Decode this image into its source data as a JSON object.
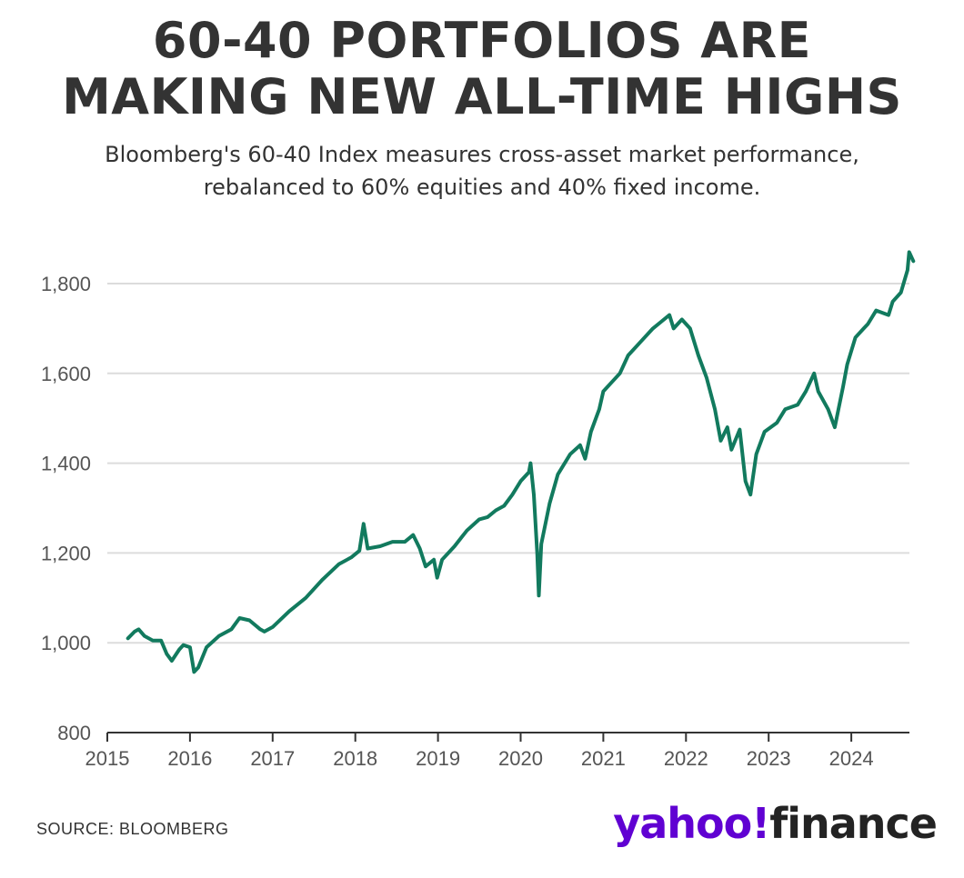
{
  "header": {
    "title_line1": "60-40 PORTFOLIOS ARE",
    "title_line2": "MAKING NEW ALL-TIME HIGHS",
    "subtitle_line1": "Bloomberg's 60-40 Index measures cross-asset market performance,",
    "subtitle_line2": "rebalanced to 60% equities and 40% fixed income."
  },
  "footer": {
    "source": "SOURCE: BLOOMBERG",
    "logo_yahoo": "yahoo!",
    "logo_finance": "finance",
    "logo_colors": {
      "yahoo": "#6001d2",
      "finance": "#232323"
    }
  },
  "chart_data": {
    "type": "line",
    "title": "60-40 PORTFOLIOS ARE MAKING NEW ALL-TIME HIGHS",
    "xlabel": "",
    "ylabel": "",
    "xlim": [
      2015,
      2024.75
    ],
    "ylim": [
      800,
      1860
    ],
    "yticks": [
      800,
      1000,
      1200,
      1400,
      1600,
      1800
    ],
    "ytick_labels": [
      "800",
      "1,000",
      "1,200",
      "1,400",
      "1,600",
      "1,800"
    ],
    "xticks": [
      2015,
      2016,
      2017,
      2018,
      2019,
      2020,
      2021,
      2022,
      2023,
      2024
    ],
    "xtick_labels": [
      "2015",
      "2016",
      "2017",
      "2018",
      "2019",
      "2020",
      "2021",
      "2022",
      "2023",
      "2024"
    ],
    "grid": "horizontal",
    "line_color": "#127a5e",
    "series": [
      {
        "x": [
          2015.25,
          2015.33,
          2015.38,
          2015.45,
          2015.55,
          2015.65,
          2015.72,
          2015.78,
          2015.87,
          2015.92,
          2016.0,
          2016.05,
          2016.1,
          2016.2,
          2016.35,
          2016.5,
          2016.6,
          2016.72,
          2016.85,
          2016.9,
          2017.0,
          2017.2,
          2017.4,
          2017.6,
          2017.8,
          2017.95,
          2018.05,
          2018.1,
          2018.15,
          2018.3,
          2018.45,
          2018.6,
          2018.7,
          2018.78,
          2018.85,
          2018.95,
          2018.99,
          2019.05,
          2019.2,
          2019.35,
          2019.5,
          2019.6,
          2019.7,
          2019.8,
          2019.9,
          2020.0,
          2020.1,
          2020.12,
          2020.16,
          2020.2,
          2020.22,
          2020.25,
          2020.35,
          2020.45,
          2020.6,
          2020.72,
          2020.78,
          2020.85,
          2020.95,
          2021.0,
          2021.1,
          2021.2,
          2021.3,
          2021.45,
          2021.6,
          2021.7,
          2021.8,
          2021.85,
          2021.95,
          2022.05,
          2022.15,
          2022.25,
          2022.35,
          2022.42,
          2022.5,
          2022.55,
          2022.65,
          2022.72,
          2022.78,
          2022.85,
          2022.95,
          2023.1,
          2023.2,
          2023.35,
          2023.45,
          2023.55,
          2023.6,
          2023.72,
          2023.8,
          2023.9,
          2023.95,
          2024.05,
          2024.15,
          2024.2,
          2024.3,
          2024.45,
          2024.5,
          2024.6,
          2024.68,
          2024.7,
          2024.75
        ],
        "values": [
          1010,
          1025,
          1030,
          1015,
          1005,
          1005,
          975,
          960,
          985,
          995,
          990,
          935,
          945,
          990,
          1015,
          1030,
          1055,
          1050,
          1030,
          1025,
          1035,
          1070,
          1100,
          1140,
          1175,
          1190,
          1205,
          1265,
          1210,
          1215,
          1225,
          1225,
          1240,
          1210,
          1170,
          1185,
          1145,
          1185,
          1215,
          1250,
          1275,
          1280,
          1295,
          1305,
          1330,
          1360,
          1380,
          1400,
          1330,
          1200,
          1105,
          1220,
          1310,
          1375,
          1420,
          1440,
          1410,
          1470,
          1520,
          1560,
          1580,
          1600,
          1640,
          1670,
          1700,
          1715,
          1730,
          1700,
          1720,
          1700,
          1640,
          1590,
          1520,
          1450,
          1480,
          1430,
          1475,
          1360,
          1330,
          1420,
          1470,
          1490,
          1520,
          1530,
          1560,
          1600,
          1560,
          1520,
          1480,
          1570,
          1620,
          1680,
          1700,
          1710,
          1740,
          1730,
          1760,
          1780,
          1830,
          1870,
          1850
        ]
      }
    ]
  }
}
